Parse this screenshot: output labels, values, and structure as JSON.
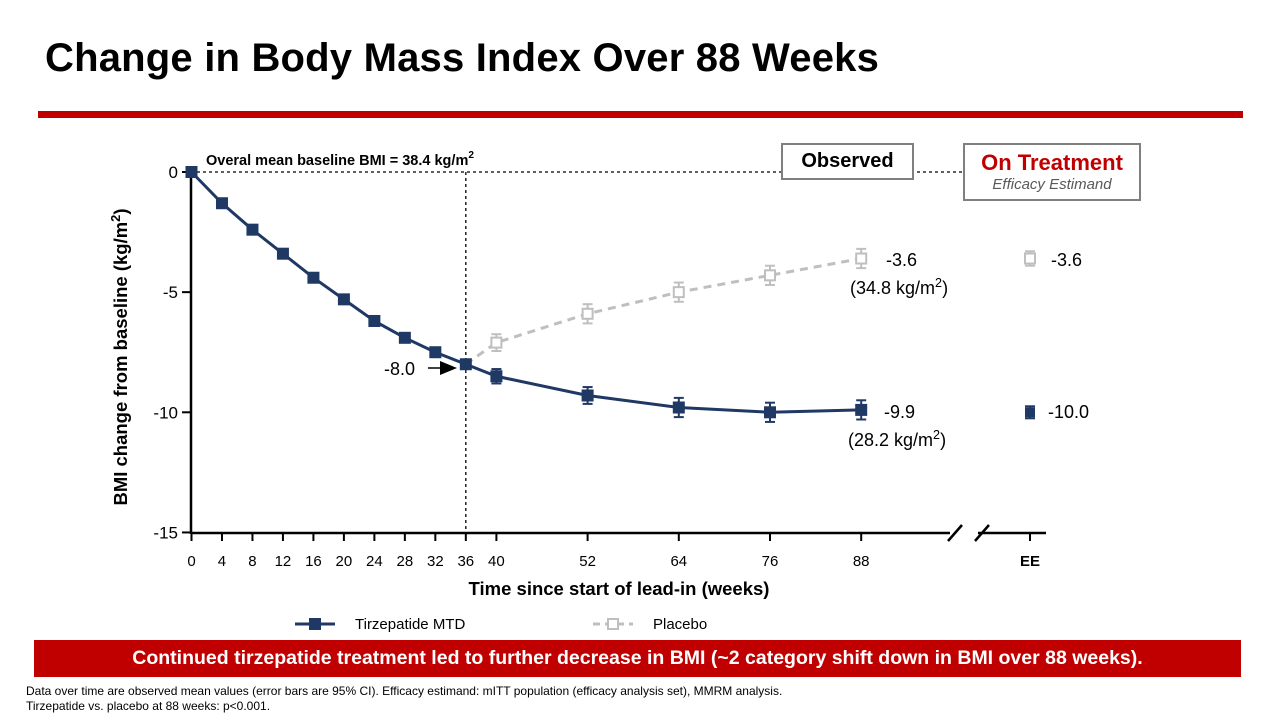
{
  "title": "Change in Body Mass Index Over 88 Weeks",
  "boxes": {
    "observed": "Observed",
    "on_treatment": "On Treatment",
    "estimand": "Efficacy Estimand"
  },
  "baseline_note": {
    "text": "Overal mean baseline BMI = 38.4 kg/m",
    "sup": "2"
  },
  "legend": {
    "tirzepatide": "Tirzepatide MTD",
    "placebo": "Placebo"
  },
  "banner": "Continued tirzepatide treatment led to further decrease in BMI (~2 category shift down in BMI over 88 weeks).",
  "footnotes": [
    "Data over time are observed mean values (error bars are 95% CI). Efficacy estimand: mITT population (efficacy analysis set), MMRM analysis.",
    "Tirzepatide vs. placebo at 88 weeks: p<0.001."
  ],
  "colors": {
    "brand_red": "#c00000",
    "tirzepatide": "#1f3864",
    "placebo": "#bfbfbf"
  },
  "chart_data": {
    "type": "line",
    "xlabel": "Time since start of lead-in (weeks)",
    "ylabel": "BMI change from baseline (kg/m2)",
    "ylim": [
      -15,
      0
    ],
    "yticks": [
      0,
      -5,
      -10,
      -15
    ],
    "xticks": [
      "0",
      "4",
      "8",
      "12",
      "16",
      "20",
      "24",
      "28",
      "32",
      "36",
      "40",
      "52",
      "64",
      "76",
      "88"
    ],
    "x_end_label": "EE",
    "axis_break": true,
    "series": [
      {
        "name": "Tirzepatide MTD",
        "style": "solid",
        "marker": "filled-square",
        "x": [
          0,
          4,
          8,
          12,
          16,
          20,
          24,
          28,
          32,
          36,
          40,
          52,
          64,
          76,
          88
        ],
        "y": [
          0,
          -1.3,
          -2.4,
          -3.4,
          -4.4,
          -5.3,
          -6.2,
          -6.9,
          -7.5,
          -8.0,
          -8.5,
          -9.3,
          -9.8,
          -10.0,
          -9.9
        ],
        "ci_halfwidth": [
          0,
          0,
          0,
          0,
          0,
          0,
          0,
          0,
          0,
          0,
          0.3,
          0.35,
          0.4,
          0.4,
          0.4
        ],
        "ee_value": -10.0,
        "ee_ci_halfwidth": 0.25
      },
      {
        "name": "Placebo",
        "style": "dashed",
        "marker": "open-square",
        "x": [
          36,
          40,
          52,
          64,
          76,
          88
        ],
        "y": [
          -8.0,
          -7.1,
          -5.9,
          -5.0,
          -4.3,
          -3.6
        ],
        "ci_halfwidth": [
          0,
          0.35,
          0.4,
          0.4,
          0.4,
          0.4
        ],
        "ee_value": -3.6,
        "ee_ci_halfwidth": 0.3
      }
    ],
    "annotations": {
      "at36": "-8.0",
      "tirz_end": "-9.9",
      "tirz_end_bmi": "(28.2 kg/m",
      "placebo_end": "-3.6",
      "placebo_end_bmi": "(34.8 kg/m",
      "unit_sup": "2",
      "close_paren": ")",
      "ee_placebo": "-3.6",
      "ee_tirz": "-10.0"
    },
    "vertical_reference_x": 36,
    "horizontal_reference_y": 0
  }
}
